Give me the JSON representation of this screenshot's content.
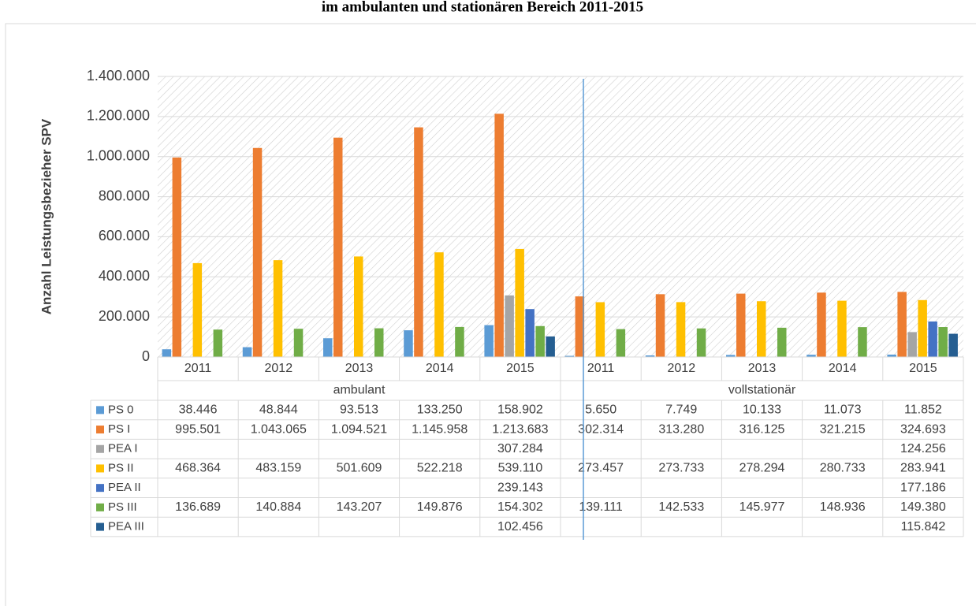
{
  "chart_data": {
    "type": "bar",
    "title": "im ambulanten und stationären Bereich 2011-2015",
    "y_label": "Anzahl Leistungsbezieher SPV",
    "categories": [
      "2011",
      "2012",
      "2013",
      "2014",
      "2015",
      "2011",
      "2012",
      "2013",
      "2014",
      "2015"
    ],
    "groups": [
      "ambulant",
      "vollstationär"
    ],
    "ylim": [
      0,
      1400000
    ],
    "yticks": [
      0,
      {
        "value": 200000,
        "label": "200.000"
      },
      {
        "value": 400000,
        "label": "400.000"
      },
      {
        "value": 600000,
        "label": "600.000"
      },
      {
        "value": 800000,
        "label": "800.000"
      },
      {
        "value": 1000000,
        "label": "1.000.000"
      },
      {
        "value": 1200000,
        "label": "1.200.000"
      },
      {
        "value": 1400000,
        "label": "1.400.000"
      }
    ],
    "grid": true,
    "series": [
      {
        "name": "PS 0",
        "color": "#5b9bd5",
        "values": [
          38446,
          48844,
          93513,
          133250,
          158902,
          5650,
          7749,
          10133,
          11073,
          11852
        ],
        "value_labels": [
          "38.446",
          "48.844",
          "93.513",
          "133.250",
          "158.902",
          "5.650",
          "7.749",
          "10.133",
          "11.073",
          "11.852"
        ]
      },
      {
        "name": "PS I",
        "color": "#ed7d31",
        "values": [
          995501,
          1043065,
          1094521,
          1145958,
          1213683,
          302314,
          313280,
          316125,
          321215,
          324693
        ],
        "value_labels": [
          "995.501",
          "1.043.065",
          "1.094.521",
          "1.145.958",
          "1.213.683",
          "302.314",
          "313.280",
          "316.125",
          "321.215",
          "324.693"
        ]
      },
      {
        "name": "PEA I",
        "color": "#a5a5a5",
        "values": [
          null,
          null,
          null,
          null,
          307284,
          null,
          null,
          null,
          null,
          124256
        ],
        "value_labels": [
          null,
          null,
          null,
          null,
          "307.284",
          null,
          null,
          null,
          null,
          "124.256"
        ]
      },
      {
        "name": "PS II",
        "color": "#ffc000",
        "values": [
          468364,
          483159,
          501609,
          522218,
          539110,
          273457,
          273733,
          278294,
          280733,
          283941
        ],
        "value_labels": [
          "468.364",
          "483.159",
          "501.609",
          "522.218",
          "539.110",
          "273.457",
          "273.733",
          "278.294",
          "280.733",
          "283.941"
        ]
      },
      {
        "name": "PEA II",
        "color": "#4472c4",
        "values": [
          null,
          null,
          null,
          null,
          239143,
          null,
          null,
          null,
          null,
          177186
        ],
        "value_labels": [
          null,
          null,
          null,
          null,
          "239.143",
          null,
          null,
          null,
          null,
          "177.186"
        ]
      },
      {
        "name": "PS III",
        "color": "#70ad47",
        "values": [
          136689,
          140884,
          143207,
          149876,
          154302,
          139111,
          142533,
          145977,
          148936,
          149380
        ],
        "value_labels": [
          "136.689",
          "140.884",
          "143.207",
          "149.876",
          "154.302",
          "139.111",
          "142.533",
          "145.977",
          "148.936",
          "149.380"
        ]
      },
      {
        "name": "PEA III",
        "color": "#255e91",
        "values": [
          null,
          null,
          null,
          null,
          102456,
          null,
          null,
          null,
          null,
          115842
        ],
        "value_labels": [
          null,
          null,
          null,
          null,
          "102.456",
          null,
          null,
          null,
          null,
          "115.842"
        ]
      }
    ]
  }
}
